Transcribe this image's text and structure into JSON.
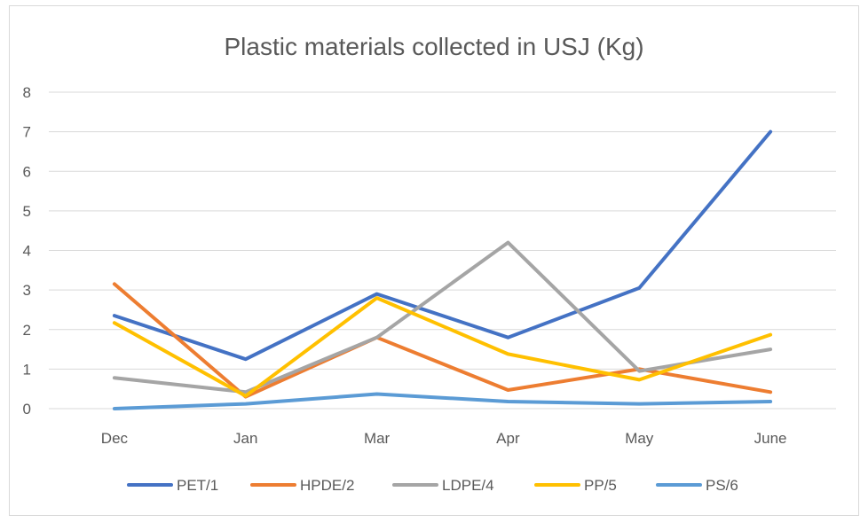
{
  "chart_data": {
    "type": "line",
    "title": "Plastic materials collected in USJ (Kg)",
    "xlabel": "",
    "ylabel": "",
    "categories": [
      "Dec",
      "Jan",
      "Mar",
      "Apr",
      "May",
      "June"
    ],
    "ylim": [
      0,
      8
    ],
    "yticks": [
      "0",
      "1",
      "2",
      "3",
      "4",
      "5",
      "6",
      "7",
      "8"
    ],
    "grid": true,
    "legend_position": "bottom",
    "series": [
      {
        "name": "PET/1",
        "color": "#4472C4",
        "values": [
          2.35,
          1.25,
          2.9,
          1.8,
          3.05,
          7.0
        ]
      },
      {
        "name": "HPDE/2",
        "color": "#ED7D31",
        "values": [
          3.15,
          0.3,
          1.8,
          0.47,
          1.0,
          0.42
        ]
      },
      {
        "name": "LDPE/4",
        "color": "#A5A5A5",
        "values": [
          0.78,
          0.42,
          1.8,
          4.2,
          0.95,
          1.5
        ]
      },
      {
        "name": "PP/5",
        "color": "#FFC000",
        "values": [
          2.17,
          0.32,
          2.8,
          1.38,
          0.73,
          1.87
        ]
      },
      {
        "name": "PS/6",
        "color": "#5B9BD5",
        "values": [
          0.0,
          0.12,
          0.37,
          0.18,
          0.12,
          0.18
        ]
      }
    ]
  }
}
